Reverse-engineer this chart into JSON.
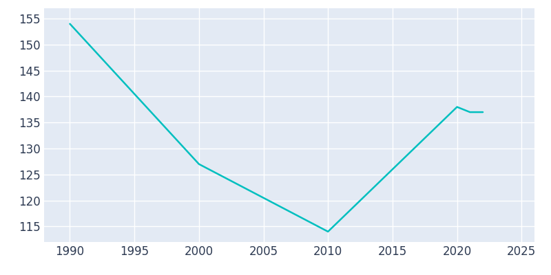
{
  "years": [
    1990,
    2000,
    2010,
    2020,
    2021,
    2022
  ],
  "population": [
    154,
    127,
    114,
    138,
    137,
    137
  ],
  "line_color": "#00BFBF",
  "bg_color": "#E3EAF4",
  "plot_bg_color": "#E3EAF4",
  "grid_color": "#FFFFFF",
  "tick_label_color": "#2D3A52",
  "xlim": [
    1988,
    2026
  ],
  "ylim": [
    112,
    157
  ],
  "xticks": [
    1990,
    1995,
    2000,
    2005,
    2010,
    2015,
    2020,
    2025
  ],
  "yticks": [
    115,
    120,
    125,
    130,
    135,
    140,
    145,
    150,
    155
  ],
  "line_width": 1.8,
  "tick_fontsize": 12
}
